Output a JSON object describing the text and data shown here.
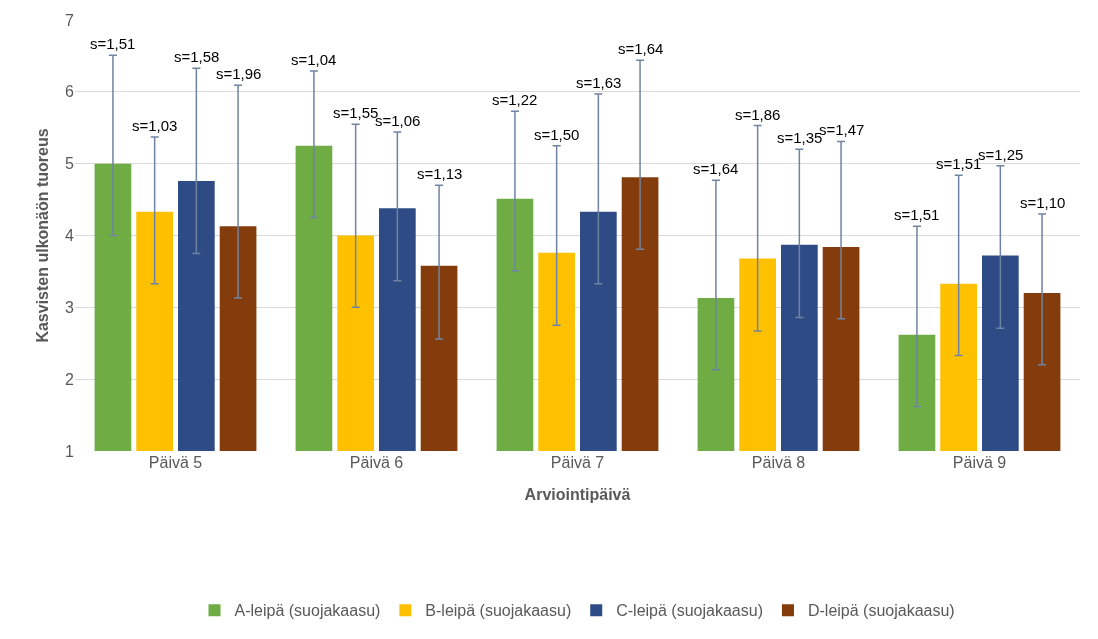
{
  "chart_data": {
    "type": "bar",
    "xlabel": "Arviointipäivä",
    "ylabel": "Kasvisten ulkonäön tuoreus",
    "categories": [
      "Päivä 5",
      "Päivä 6",
      "Päivä 7",
      "Päivä 8",
      "Päivä 9"
    ],
    "series": [
      {
        "name": "A-leipä (suojakaasu)",
        "color": "#6fac44",
        "values": [
          5.0,
          5.25,
          4.51,
          3.13,
          2.62
        ],
        "errors": [
          [
            4.0,
            6.51
          ],
          [
            4.25,
            6.29
          ],
          [
            3.51,
            5.73
          ],
          [
            2.13,
            4.77
          ],
          [
            1.62,
            4.13
          ]
        ]
      },
      {
        "name": "B-leipä (suojakaasu)",
        "color": "#ffc000",
        "values": [
          4.33,
          4.0,
          3.76,
          3.68,
          3.33
        ],
        "errors": [
          [
            3.33,
            5.37
          ],
          [
            3.0,
            5.55
          ],
          [
            2.75,
            5.25
          ],
          [
            2.67,
            5.53
          ],
          [
            2.33,
            4.84
          ]
        ]
      },
      {
        "name": "C-leipä (suojakaasu)",
        "color": "#2f4b85",
        "values": [
          4.76,
          4.38,
          4.33,
          3.87,
          3.72
        ],
        "errors": [
          [
            3.75,
            6.33
          ],
          [
            3.37,
            5.44
          ],
          [
            3.33,
            5.97
          ],
          [
            2.86,
            5.2
          ],
          [
            2.71,
            4.97
          ]
        ]
      },
      {
        "name": "D-leipä (suojakaasu)",
        "color": "#843c0c",
        "values": [
          4.13,
          3.58,
          4.81,
          3.84,
          3.2
        ],
        "errors": [
          [
            3.13,
            6.09
          ],
          [
            2.56,
            4.7
          ],
          [
            3.81,
            6.44
          ],
          [
            2.84,
            5.31
          ],
          [
            2.2,
            4.3
          ]
        ]
      }
    ],
    "annotations": [
      "s=1,51",
      "s=1,03",
      "s=1,58",
      "s=1,96",
      "s=1,04",
      "s=1,55",
      "s=1,06",
      "s=1,13",
      "s=1,22",
      "s=1,50",
      "s=1,63",
      "s=1,64",
      "s=1,64",
      "s=1,86",
      "s=1,35",
      "s=1,47",
      "s=1,51",
      "s=1,51",
      "s=1,25",
      "s=1,10"
    ],
    "ylim": [
      1,
      7
    ],
    "yticks": [
      1,
      2,
      3,
      4,
      5,
      6,
      7
    ],
    "grid": "y",
    "legend": "bottom"
  }
}
